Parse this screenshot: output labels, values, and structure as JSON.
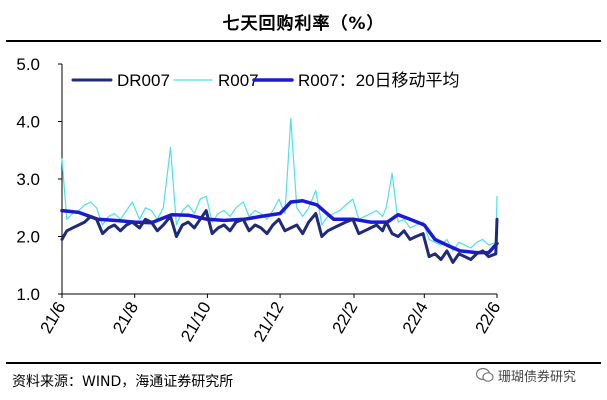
{
  "title": "七天回购利率（%）",
  "source": "资料来源：WIND，海通证券研究所",
  "watermark": "珊瑚债券研究",
  "chart_data": {
    "type": "line",
    "ylim": [
      1.0,
      5.0
    ],
    "yticks": [
      "1.0",
      "2.0",
      "3.0",
      "4.0",
      "5.0"
    ],
    "yticks_values": [
      1.0,
      2.0,
      3.0,
      4.0,
      5.0
    ],
    "xlim": [
      "2021-06-01",
      "2022-06-01"
    ],
    "xticks": [
      "21/6",
      "21/8",
      "21/10",
      "21/12",
      "22/2",
      "22/4",
      "22/6"
    ],
    "xticks_dates": [
      "2021-06-01",
      "2021-08-01",
      "2021-10-01",
      "2021-12-01",
      "2022-02-01",
      "2022-04-01",
      "2022-06-01"
    ],
    "legend_position": "top",
    "series": [
      {
        "name": "DR007",
        "color": "#1f2a78",
        "x": [
          "2021-06-01",
          "2021-06-05",
          "2021-06-10",
          "2021-06-15",
          "2021-06-20",
          "2021-06-25",
          "2021-06-30",
          "2021-07-05",
          "2021-07-10",
          "2021-07-15",
          "2021-07-20",
          "2021-07-25",
          "2021-07-30",
          "2021-08-05",
          "2021-08-10",
          "2021-08-15",
          "2021-08-20",
          "2021-08-25",
          "2021-08-31",
          "2021-09-05",
          "2021-09-10",
          "2021-09-15",
          "2021-09-20",
          "2021-09-25",
          "2021-09-30",
          "2021-10-05",
          "2021-10-10",
          "2021-10-15",
          "2021-10-20",
          "2021-10-25",
          "2021-10-31",
          "2021-11-05",
          "2021-11-10",
          "2021-11-15",
          "2021-11-20",
          "2021-11-25",
          "2021-11-30",
          "2021-12-05",
          "2021-12-10",
          "2021-12-15",
          "2021-12-20",
          "2021-12-25",
          "2021-12-31",
          "2022-01-05",
          "2022-01-10",
          "2022-01-15",
          "2022-01-20",
          "2022-01-25",
          "2022-01-31",
          "2022-02-05",
          "2022-02-10",
          "2022-02-15",
          "2022-02-20",
          "2022-02-25",
          "2022-02-28",
          "2022-03-05",
          "2022-03-10",
          "2022-03-15",
          "2022-03-20",
          "2022-03-25",
          "2022-03-31",
          "2022-04-05",
          "2022-04-10",
          "2022-04-15",
          "2022-04-20",
          "2022-04-25",
          "2022-04-30",
          "2022-05-05",
          "2022-05-10",
          "2022-05-15",
          "2022-05-20",
          "2022-05-25",
          "2022-05-31",
          "2022-06-01"
        ],
        "values": [
          1.95,
          2.1,
          2.15,
          2.2,
          2.25,
          2.35,
          2.3,
          2.05,
          2.15,
          2.2,
          2.1,
          2.2,
          2.25,
          2.15,
          2.3,
          2.25,
          2.1,
          2.2,
          2.35,
          2.0,
          2.2,
          2.25,
          2.15,
          2.3,
          2.45,
          2.05,
          2.15,
          2.2,
          2.1,
          2.25,
          2.3,
          2.1,
          2.2,
          2.15,
          2.05,
          2.2,
          2.3,
          2.1,
          2.15,
          2.2,
          2.05,
          2.25,
          2.4,
          2.0,
          2.1,
          2.15,
          2.2,
          2.25,
          2.3,
          2.05,
          2.1,
          2.15,
          2.2,
          2.1,
          2.25,
          2.05,
          2.0,
          2.1,
          1.95,
          2.0,
          2.05,
          1.65,
          1.7,
          1.6,
          1.75,
          1.55,
          1.7,
          1.65,
          1.6,
          1.7,
          1.75,
          1.65,
          1.7,
          2.3
        ]
      },
      {
        "name": "R007",
        "color": "#4fe0e8",
        "x": [
          "2021-06-01",
          "2021-06-05",
          "2021-06-10",
          "2021-06-15",
          "2021-06-20",
          "2021-06-25",
          "2021-06-30",
          "2021-07-05",
          "2021-07-10",
          "2021-07-15",
          "2021-07-20",
          "2021-07-25",
          "2021-07-30",
          "2021-08-05",
          "2021-08-10",
          "2021-08-15",
          "2021-08-20",
          "2021-08-25",
          "2021-08-31",
          "2021-09-05",
          "2021-09-10",
          "2021-09-15",
          "2021-09-20",
          "2021-09-25",
          "2021-09-30",
          "2021-10-05",
          "2021-10-10",
          "2021-10-15",
          "2021-10-20",
          "2021-10-25",
          "2021-10-31",
          "2021-11-05",
          "2021-11-10",
          "2021-11-15",
          "2021-11-20",
          "2021-11-25",
          "2021-11-30",
          "2021-12-05",
          "2021-12-10",
          "2021-12-15",
          "2021-12-20",
          "2021-12-25",
          "2021-12-31",
          "2022-01-05",
          "2022-01-10",
          "2022-01-15",
          "2022-01-20",
          "2022-01-25",
          "2022-01-31",
          "2022-02-05",
          "2022-02-10",
          "2022-02-15",
          "2022-02-20",
          "2022-02-25",
          "2022-02-28",
          "2022-03-05",
          "2022-03-10",
          "2022-03-15",
          "2022-03-20",
          "2022-03-25",
          "2022-03-31",
          "2022-04-05",
          "2022-04-10",
          "2022-04-15",
          "2022-04-20",
          "2022-04-25",
          "2022-04-30",
          "2022-05-05",
          "2022-05-10",
          "2022-05-15",
          "2022-05-20",
          "2022-05-25",
          "2022-05-31",
          "2022-06-01"
        ],
        "values": [
          3.35,
          2.3,
          2.4,
          2.45,
          2.55,
          2.6,
          2.5,
          2.2,
          2.35,
          2.4,
          2.3,
          2.45,
          2.6,
          2.3,
          2.5,
          2.45,
          2.3,
          2.5,
          3.55,
          2.2,
          2.45,
          2.55,
          2.4,
          2.65,
          2.7,
          2.25,
          2.4,
          2.45,
          2.35,
          2.5,
          2.6,
          2.35,
          2.45,
          2.4,
          2.3,
          2.45,
          2.65,
          2.4,
          4.05,
          2.5,
          2.35,
          2.5,
          2.8,
          2.2,
          2.35,
          2.4,
          2.45,
          2.55,
          2.65,
          2.3,
          2.35,
          2.4,
          2.45,
          2.35,
          2.5,
          3.1,
          2.25,
          2.3,
          2.15,
          2.2,
          2.25,
          1.95,
          1.9,
          1.85,
          1.95,
          1.75,
          1.9,
          1.85,
          1.8,
          1.9,
          1.95,
          1.85,
          1.9,
          2.7
        ]
      },
      {
        "name": "R007：20日移动平均",
        "color": "#1a1ad6",
        "x": [
          "2021-06-01",
          "2021-06-15",
          "2021-07-01",
          "2021-07-15",
          "2021-08-01",
          "2021-08-15",
          "2021-09-01",
          "2021-09-15",
          "2021-10-01",
          "2021-10-15",
          "2021-11-01",
          "2021-11-15",
          "2021-12-01",
          "2021-12-10",
          "2021-12-20",
          "2022-01-01",
          "2022-01-15",
          "2022-02-01",
          "2022-02-15",
          "2022-03-01",
          "2022-03-10",
          "2022-03-20",
          "2022-04-01",
          "2022-04-10",
          "2022-04-20",
          "2022-05-01",
          "2022-05-15",
          "2022-05-25",
          "2022-06-01"
        ],
        "values": [
          2.45,
          2.42,
          2.3,
          2.28,
          2.25,
          2.24,
          2.38,
          2.37,
          2.3,
          2.28,
          2.3,
          2.35,
          2.4,
          2.6,
          2.62,
          2.55,
          2.3,
          2.3,
          2.25,
          2.25,
          2.38,
          2.3,
          2.2,
          1.95,
          1.85,
          1.75,
          1.72,
          1.72,
          1.88
        ]
      }
    ]
  }
}
